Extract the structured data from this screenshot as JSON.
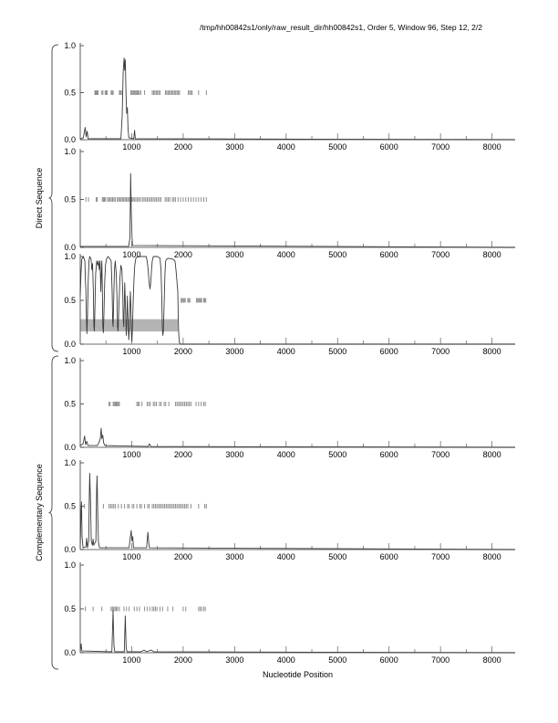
{
  "title": "/tmp/hh00842s1/only/raw_result_dir/hh00842s1, Order 5, Window 96, Step 12, 2/2",
  "colors": {
    "line": "#3a3a3a",
    "site_marks": "#8c8c8c",
    "band": "#b4b4b4",
    "baseline": "#8a8a8a",
    "yaxis": "#5a5a5a",
    "tick": "#6e6e6e",
    "brace": "#555555",
    "text": "#000000"
  },
  "chart_data": {
    "type": "line",
    "figure_title": "/tmp/hh00842s1/only/raw_result_dir/hh00842s1, Order 5, Window 96, Step 12, 2/2",
    "xlabel": "Nucleotide Position",
    "xlim": [
      0,
      8450
    ],
    "ylim": [
      0,
      1
    ],
    "xticks": [
      1000,
      2000,
      3000,
      4000,
      5000,
      6000,
      7000,
      8000
    ],
    "xtick_labels": [
      "1000",
      "2000",
      "3000",
      "4000",
      "5000",
      "6000",
      "7000",
      "8000"
    ],
    "xtick_minor_step": 500,
    "yticks": [
      0,
      0.5,
      1
    ],
    "ytick_labels": [
      "0.0",
      "0.5",
      "1.0"
    ],
    "grid": false,
    "legend": "none",
    "groups": [
      {
        "label": "Direct Sequence",
        "panel_indices": [
          0,
          1,
          2
        ]
      },
      {
        "label": "Complementary Sequence",
        "panel_indices": [
          3,
          4,
          5
        ]
      }
    ],
    "panels": [
      {
        "id": "direct-1",
        "group": "Direct Sequence",
        "band": null,
        "site_marks_y": 0.5,
        "site_marks_x": [
          285,
          300,
          315,
          330,
          345,
          420,
          440,
          485,
          505,
          525,
          600,
          620,
          640,
          760,
          780,
          800,
          985,
          1005,
          1025,
          1045,
          1065,
          1085,
          1105,
          1125,
          1150,
          1175,
          1250,
          1400,
          1425,
          1450,
          1475,
          1500,
          1525,
          1550,
          1655,
          1680,
          1705,
          1730,
          1755,
          1780,
          1805,
          1830,
          1855,
          1880,
          1905,
          1930,
          2100,
          2125,
          2150,
          2175,
          2300,
          2450
        ],
        "line_points": [
          [
            0,
            0.01
          ],
          [
            60,
            0.02
          ],
          [
            95,
            0.13
          ],
          [
            115,
            0.03
          ],
          [
            135,
            0.09
          ],
          [
            155,
            0.01
          ],
          [
            790,
            0.01
          ],
          [
            815,
            0.25
          ],
          [
            835,
            0.72
          ],
          [
            852,
            0.87
          ],
          [
            863,
            0.74
          ],
          [
            876,
            0.85
          ],
          [
            890,
            0.5
          ],
          [
            902,
            0.28
          ],
          [
            915,
            0.34
          ],
          [
            928,
            0.12
          ],
          [
            945,
            0.02
          ],
          [
            1040,
            0.01
          ],
          [
            1055,
            0.1
          ],
          [
            1070,
            0.01
          ],
          [
            8450,
            0.0
          ]
        ]
      },
      {
        "id": "direct-2",
        "group": "Direct Sequence",
        "band": null,
        "site_marks_y": 0.5,
        "site_marks_x": [
          110,
          160,
          310,
          330,
          430,
          450,
          470,
          490,
          530,
          555,
          580,
          605,
          630,
          655,
          680,
          720,
          745,
          770,
          795,
          820,
          845,
          870,
          895,
          920,
          945,
          970,
          1000,
          1025,
          1050,
          1080,
          1110,
          1140,
          1170,
          1210,
          1240,
          1270,
          1300,
          1330,
          1360,
          1390,
          1420,
          1450,
          1480,
          1510,
          1540,
          1570,
          1650,
          1680,
          1710,
          1740,
          1790,
          1820,
          1850,
          1900,
          1950,
          2000,
          2050,
          2100,
          2150,
          2200,
          2250,
          2300,
          2350,
          2400,
          2450
        ],
        "line_points": [
          [
            0,
            0.01
          ],
          [
            940,
            0.01
          ],
          [
            965,
            0.1
          ],
          [
            980,
            0.77
          ],
          [
            992,
            0.35
          ],
          [
            1002,
            0.15
          ],
          [
            1015,
            0.02
          ],
          [
            8450,
            0.0
          ]
        ]
      },
      {
        "id": "direct-3",
        "group": "Direct Sequence",
        "band": {
          "x": [
            0,
            1900
          ],
          "y": [
            0.145,
            0.285
          ]
        },
        "site_marks_y": 0.5,
        "site_marks_x": [
          1960,
          1980,
          2000,
          2020,
          2040,
          2090,
          2110,
          2130,
          2260,
          2280,
          2300,
          2320,
          2340,
          2360,
          2400,
          2420,
          2440
        ],
        "line_points": [
          [
            0,
            0.55
          ],
          [
            15,
            0.8
          ],
          [
            30,
            0.97
          ],
          [
            60,
            1.0
          ],
          [
            90,
            0.95
          ],
          [
            100,
            0.75
          ],
          [
            110,
            0.62
          ],
          [
            120,
            0.3
          ],
          [
            130,
            0.12
          ],
          [
            140,
            0.3
          ],
          [
            155,
            0.7
          ],
          [
            170,
            0.95
          ],
          [
            185,
            1.0
          ],
          [
            210,
            0.97
          ],
          [
            225,
            0.85
          ],
          [
            240,
            0.92
          ],
          [
            255,
            0.6
          ],
          [
            265,
            0.2
          ],
          [
            275,
            0.15
          ],
          [
            285,
            0.4
          ],
          [
            300,
            0.8
          ],
          [
            320,
            0.95
          ],
          [
            340,
            0.9
          ],
          [
            355,
            0.95
          ],
          [
            370,
            0.85
          ],
          [
            385,
            0.95
          ],
          [
            400,
            0.6
          ],
          [
            410,
            0.8
          ],
          [
            420,
            0.95
          ],
          [
            430,
            0.6
          ],
          [
            440,
            0.2
          ],
          [
            450,
            0.13
          ],
          [
            460,
            0.35
          ],
          [
            475,
            0.7
          ],
          [
            490,
            0.9
          ],
          [
            510,
            0.97
          ],
          [
            540,
            1.0
          ],
          [
            570,
            0.98
          ],
          [
            600,
            0.95
          ],
          [
            620,
            0.6
          ],
          [
            630,
            0.25
          ],
          [
            640,
            0.2
          ],
          [
            650,
            0.5
          ],
          [
            665,
            0.85
          ],
          [
            680,
            0.95
          ],
          [
            700,
            0.8
          ],
          [
            715,
            0.5
          ],
          [
            725,
            0.2
          ],
          [
            735,
            0.15
          ],
          [
            750,
            0.4
          ],
          [
            770,
            0.75
          ],
          [
            790,
            0.9
          ],
          [
            810,
            0.85
          ],
          [
            825,
            0.6
          ],
          [
            835,
            0.3
          ],
          [
            845,
            0.2
          ],
          [
            855,
            0.45
          ],
          [
            865,
            0.7
          ],
          [
            875,
            0.5
          ],
          [
            885,
            0.25
          ],
          [
            895,
            0.1
          ],
          [
            905,
            0.3
          ],
          [
            915,
            0.55
          ],
          [
            925,
            0.35
          ],
          [
            935,
            0.15
          ],
          [
            945,
            0.05
          ],
          [
            955,
            0.2
          ],
          [
            965,
            0.45
          ],
          [
            975,
            0.6
          ],
          [
            985,
            0.4
          ],
          [
            995,
            0.1
          ],
          [
            1005,
            0.03
          ],
          [
            1015,
            0.2
          ],
          [
            1030,
            0.5
          ],
          [
            1045,
            0.75
          ],
          [
            1060,
            0.9
          ],
          [
            1080,
            0.98
          ],
          [
            1110,
            1.0
          ],
          [
            1280,
            1.0
          ],
          [
            1300,
            0.95
          ],
          [
            1320,
            0.85
          ],
          [
            1340,
            0.7
          ],
          [
            1355,
            0.63
          ],
          [
            1370,
            0.7
          ],
          [
            1385,
            0.85
          ],
          [
            1400,
            0.95
          ],
          [
            1420,
            1.0
          ],
          [
            1500,
            1.0
          ],
          [
            1550,
            0.98
          ],
          [
            1570,
            0.85
          ],
          [
            1585,
            0.5
          ],
          [
            1595,
            0.2
          ],
          [
            1605,
            0.1
          ],
          [
            1615,
            0.15
          ],
          [
            1630,
            0.45
          ],
          [
            1645,
            0.8
          ],
          [
            1660,
            0.95
          ],
          [
            1680,
            0.97
          ],
          [
            1720,
            0.98
          ],
          [
            1800,
            0.97
          ],
          [
            1840,
            0.95
          ],
          [
            1860,
            0.85
          ],
          [
            1875,
            0.75
          ],
          [
            1895,
            0.6
          ],
          [
            1905,
            0.3
          ],
          [
            1915,
            0.1
          ],
          [
            1925,
            0.02
          ],
          [
            1950,
            0.0
          ],
          [
            8450,
            0.0
          ]
        ]
      },
      {
        "id": "complementary-1",
        "group": "Complementary Sequence",
        "band": null,
        "site_marks_y": 0.5,
        "site_marks_x": [
          560,
          580,
          640,
          660,
          680,
          700,
          720,
          740,
          760,
          1100,
          1125,
          1150,
          1200,
          1300,
          1330,
          1360,
          1420,
          1450,
          1480,
          1540,
          1570,
          1630,
          1660,
          1720,
          1850,
          1880,
          1910,
          1940,
          1970,
          2000,
          2030,
          2060,
          2090,
          2120,
          2150,
          2250,
          2300,
          2350,
          2400,
          2430
        ],
        "line_points": [
          [
            0,
            0.02
          ],
          [
            55,
            0.04
          ],
          [
            85,
            0.13
          ],
          [
            105,
            0.03
          ],
          [
            125,
            0.07
          ],
          [
            150,
            0.02
          ],
          [
            330,
            0.02
          ],
          [
            360,
            0.05
          ],
          [
            390,
            0.1
          ],
          [
            408,
            0.22
          ],
          [
            420,
            0.1
          ],
          [
            437,
            0.14
          ],
          [
            455,
            0.05
          ],
          [
            480,
            0.02
          ],
          [
            1320,
            0.01
          ],
          [
            1345,
            0.04
          ],
          [
            1370,
            0.01
          ],
          [
            8450,
            0.0
          ]
        ]
      },
      {
        "id": "complementary-2",
        "group": "Complementary Sequence",
        "band": null,
        "site_marks_y": 0.5,
        "site_marks_x": [
          80,
          450,
          560,
          590,
          620,
          650,
          680,
          740,
          800,
          860,
          920,
          950,
          1010,
          1040,
          1100,
          1160,
          1190,
          1250,
          1310,
          1340,
          1400,
          1430,
          1460,
          1490,
          1520,
          1550,
          1580,
          1610,
          1640,
          1670,
          1700,
          1730,
          1760,
          1790,
          1820,
          1850,
          1880,
          1910,
          1940,
          1970,
          2000,
          2030,
          2060,
          2090,
          2150,
          2300,
          2420,
          2450
        ],
        "line_points": [
          [
            0,
            0.02
          ],
          [
            15,
            0.4
          ],
          [
            25,
            0.55
          ],
          [
            35,
            0.15
          ],
          [
            55,
            0.02
          ],
          [
            110,
            0.03
          ],
          [
            125,
            0.13
          ],
          [
            140,
            0.02
          ],
          [
            165,
            0.1
          ],
          [
            175,
            0.6
          ],
          [
            185,
            0.88
          ],
          [
            200,
            0.55
          ],
          [
            215,
            0.1
          ],
          [
            235,
            0.05
          ],
          [
            250,
            0.12
          ],
          [
            262,
            0.05
          ],
          [
            305,
            0.1
          ],
          [
            318,
            0.7
          ],
          [
            328,
            0.85
          ],
          [
            340,
            0.4
          ],
          [
            355,
            0.08
          ],
          [
            375,
            0.02
          ],
          [
            950,
            0.02
          ],
          [
            975,
            0.15
          ],
          [
            990,
            0.22
          ],
          [
            1005,
            0.1
          ],
          [
            1020,
            0.15
          ],
          [
            1035,
            0.02
          ],
          [
            1290,
            0.02
          ],
          [
            1305,
            0.14
          ],
          [
            1315,
            0.2
          ],
          [
            1330,
            0.08
          ],
          [
            1345,
            0.02
          ],
          [
            8450,
            0.0
          ]
        ]
      },
      {
        "id": "complementary-3",
        "group": "Complementary Sequence",
        "band": null,
        "site_marks_y": 0.5,
        "site_marks_x": [
          100,
          250,
          420,
          600,
          625,
          650,
          675,
          700,
          725,
          760,
          850,
          900,
          950,
          1050,
          1100,
          1150,
          1250,
          1300,
          1350,
          1400,
          1430,
          1460,
          1490,
          1550,
          1600,
          1700,
          1800,
          2000,
          2050,
          2300,
          2330,
          2360,
          2400,
          2430
        ],
        "line_points": [
          [
            0,
            0.01
          ],
          [
            18,
            0.1
          ],
          [
            32,
            0.02
          ],
          [
            615,
            0.01
          ],
          [
            638,
            0.48
          ],
          [
            655,
            0.08
          ],
          [
            672,
            0.01
          ],
          [
            855,
            0.01
          ],
          [
            875,
            0.42
          ],
          [
            893,
            0.05
          ],
          [
            910,
            0.01
          ],
          [
            1180,
            0.01
          ],
          [
            1240,
            0.03
          ],
          [
            1290,
            0.01
          ],
          [
            1380,
            0.03
          ],
          [
            1430,
            0.01
          ],
          [
            8450,
            0.0
          ]
        ]
      }
    ]
  }
}
